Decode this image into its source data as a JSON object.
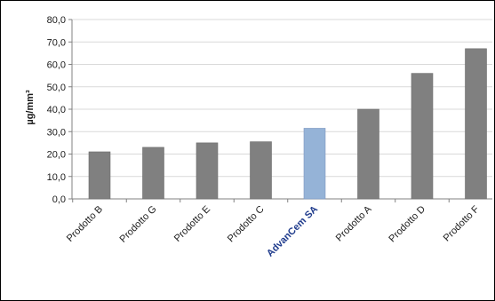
{
  "chart_data": {
    "type": "bar",
    "title": "",
    "xlabel": "",
    "ylabel": "µg/mm³",
    "ylim": [
      0,
      80
    ],
    "ytick_step": 10,
    "ytick_labels": [
      "0,0",
      "10,0",
      "20,0",
      "30,0",
      "40,0",
      "50,0",
      "60,0",
      "70,0",
      "80,0"
    ],
    "grid": true,
    "categories": [
      "Prodotto B",
      "Prodotto G",
      "Prodotto E",
      "Prodotto C",
      "AdvanCem SA",
      "Prodotto A",
      "Prodotto D",
      "Prodotto F"
    ],
    "values": [
      21,
      23,
      25,
      25.5,
      31.5,
      40,
      56,
      67
    ],
    "highlight": "AdvanCem SA",
    "colors": {
      "bar": "#808080",
      "highlight_bar": "#95b3d7",
      "highlight_label": "#1f3b8c",
      "grid": "#d9d9d9"
    }
  }
}
